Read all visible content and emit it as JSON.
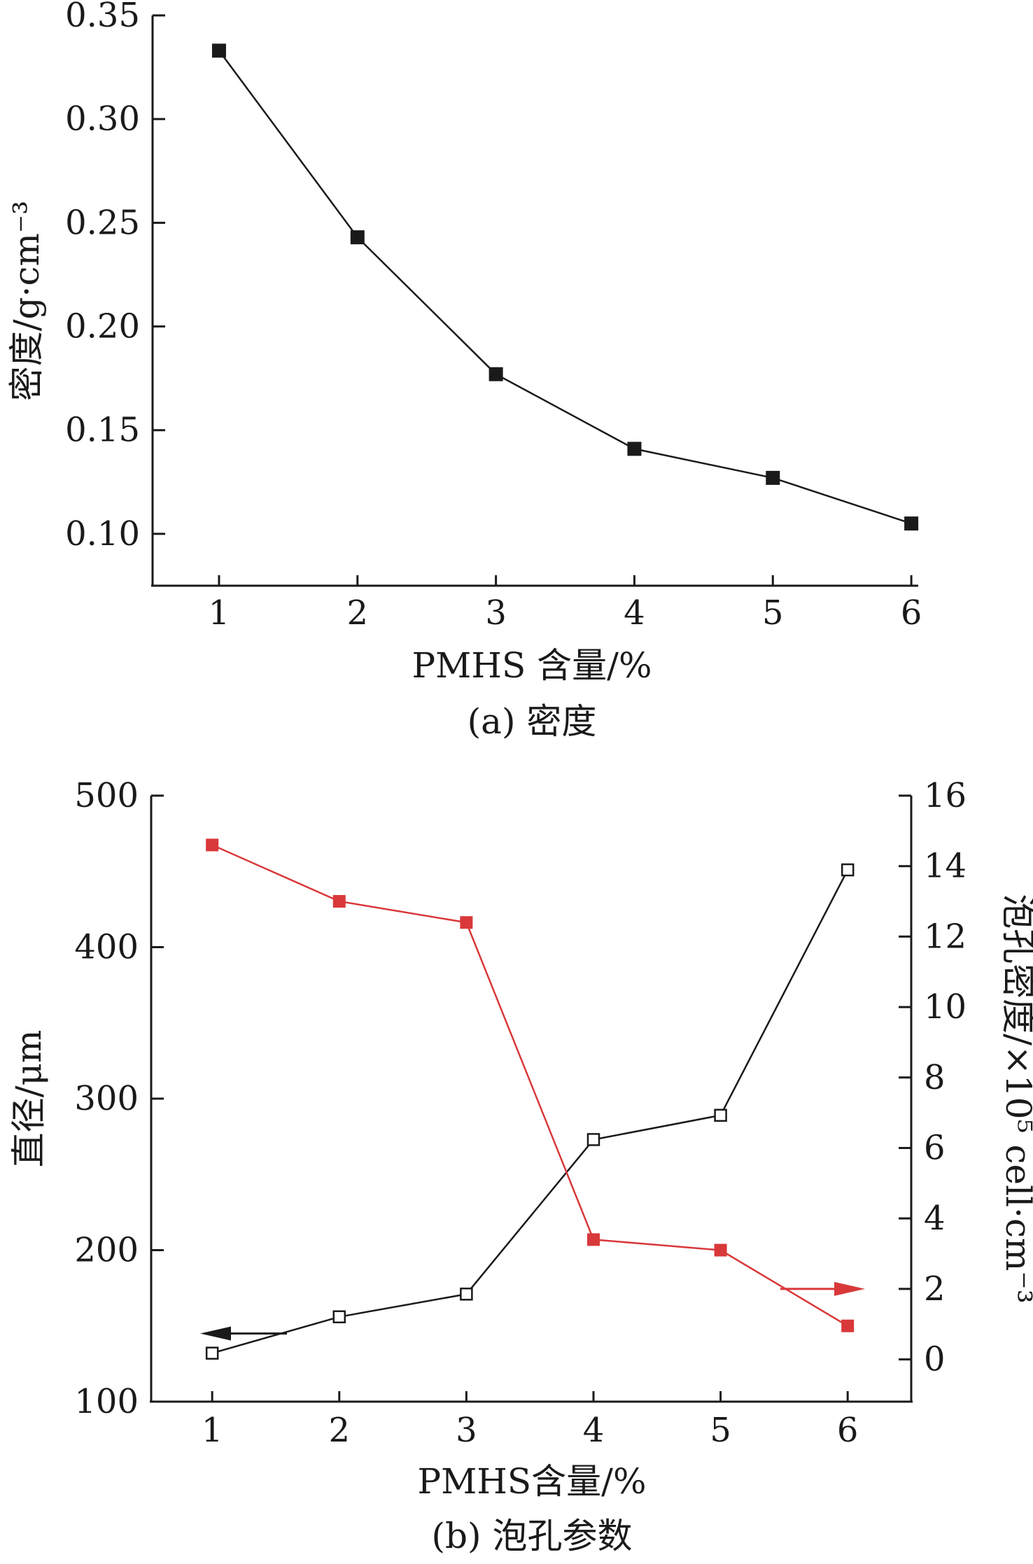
{
  "chart_data": [
    {
      "type": "line",
      "caption": "(a) 密度",
      "xlabel": "PMHS 含量/%",
      "ylabel": "密度/g·cm⁻³",
      "x": [
        1,
        2,
        3,
        4,
        5,
        6
      ],
      "xticks": [
        "1",
        "2",
        "3",
        "4",
        "5",
        "6"
      ],
      "yticks": [
        "0.10",
        "0.15",
        "0.20",
        "0.25",
        "0.30",
        "0.35"
      ],
      "xlim": [
        0.52,
        6.05
      ],
      "ylim": [
        0.075,
        0.35
      ],
      "series": [
        {
          "values": [
            0.333,
            0.243,
            0.177,
            0.141,
            0.127,
            0.105
          ],
          "color": "#1a1a1a",
          "marker": "filled-square"
        }
      ]
    },
    {
      "type": "line",
      "caption": "(b) 泡孔参数",
      "xlabel": "PMHS含量/%",
      "ylabel_left": "直径/μm",
      "ylabel_right": "泡孔密度/×10⁵ cell·cm⁻³",
      "x": [
        1,
        2,
        3,
        4,
        5,
        6
      ],
      "xticks": [
        "1",
        "2",
        "3",
        "4",
        "5",
        "6"
      ],
      "yticks_left": [
        "100",
        "200",
        "300",
        "400",
        "500"
      ],
      "yticks_right": [
        "0",
        "2",
        "4",
        "6",
        "8",
        "10",
        "12",
        "14",
        "16"
      ],
      "xlim": [
        0.52,
        6.5
      ],
      "ylim_left": [
        100,
        500
      ],
      "ylim_right": [
        -1.2,
        16
      ],
      "series": [
        {
          "axis": "left",
          "values": [
            132,
            156,
            171,
            273,
            289,
            451
          ],
          "color": "#1a1a1a",
          "marker": "open-square"
        },
        {
          "axis": "right",
          "values": [
            14.6,
            13.0,
            12.4,
            3.4,
            3.1,
            0.95
          ],
          "color": "#d9383a",
          "marker": "filled-square"
        }
      ]
    }
  ]
}
